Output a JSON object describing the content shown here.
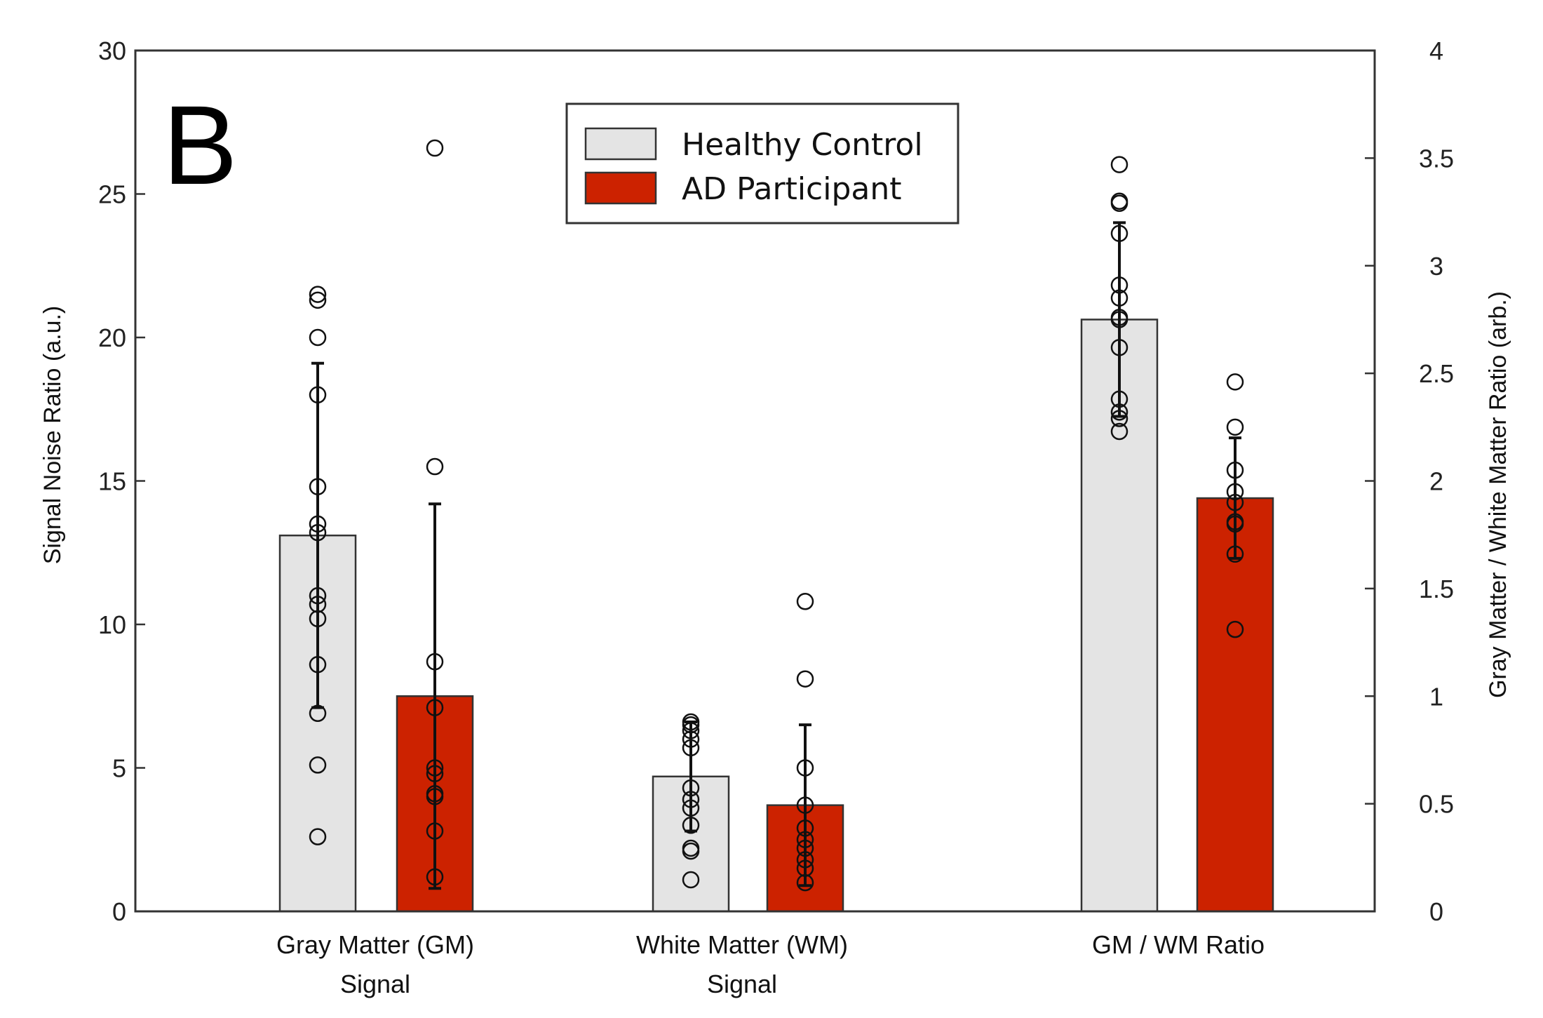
{
  "chart_data": {
    "type": "bar",
    "panel_label": "B",
    "categories": [
      {
        "id": "gm",
        "lines": [
          "Gray Matter (GM)",
          "Signal"
        ],
        "axis": "left"
      },
      {
        "id": "wm",
        "lines": [
          "White Matter (WM)",
          "Signal"
        ],
        "axis": "left"
      },
      {
        "id": "ratio",
        "lines": [
          "GM / WM Ratio"
        ],
        "axis": "right"
      }
    ],
    "series": [
      {
        "name": "Healthy Control",
        "color": "#e4e4e4",
        "values": [
          13.1,
          4.7,
          2.75
        ],
        "errors": [
          6.0,
          1.9,
          0.45
        ],
        "points": [
          [
            21.5,
            21.3,
            20.0,
            18.0,
            14.8,
            13.5,
            13.2,
            11.0,
            10.7,
            10.2,
            8.6,
            6.9,
            5.1,
            2.6
          ],
          [
            6.6,
            6.5,
            6.3,
            6.0,
            5.7,
            4.3,
            3.9,
            3.6,
            3.0,
            2.2,
            2.1,
            1.1
          ],
          [
            3.47,
            3.3,
            3.29,
            3.15,
            2.91,
            2.85,
            2.76,
            2.75,
            2.62,
            2.38,
            2.32,
            2.29,
            2.23
          ]
        ]
      },
      {
        "name": "AD Participant",
        "color": "#cc2200",
        "values": [
          7.5,
          3.7,
          1.92
        ],
        "errors": [
          6.7,
          2.8,
          0.28
        ],
        "points": [
          [
            26.6,
            15.5,
            8.7,
            7.1,
            5.0,
            4.8,
            4.1,
            4.0,
            2.8,
            1.2
          ],
          [
            10.8,
            8.1,
            5.0,
            3.7,
            2.9,
            2.5,
            2.2,
            1.8,
            1.5,
            1.0
          ],
          [
            2.46,
            2.25,
            2.05,
            1.95,
            1.9,
            1.81,
            1.8,
            1.66,
            1.31
          ]
        ]
      }
    ],
    "ylabel": "Signal Noise Ratio (a.u.)",
    "ylim": [
      0,
      30
    ],
    "yticks": [
      "0",
      "5",
      "10",
      "15",
      "20",
      "25",
      "30"
    ],
    "y2label": "Gray Matter / White Matter Ratio (arb.)",
    "y2lim": [
      0,
      4
    ],
    "y2ticks": [
      "0",
      "0.5",
      "1",
      "1.5",
      "2",
      "2.5",
      "3",
      "3.5",
      "4"
    ],
    "legend_position": "top-center",
    "grid": false
  }
}
